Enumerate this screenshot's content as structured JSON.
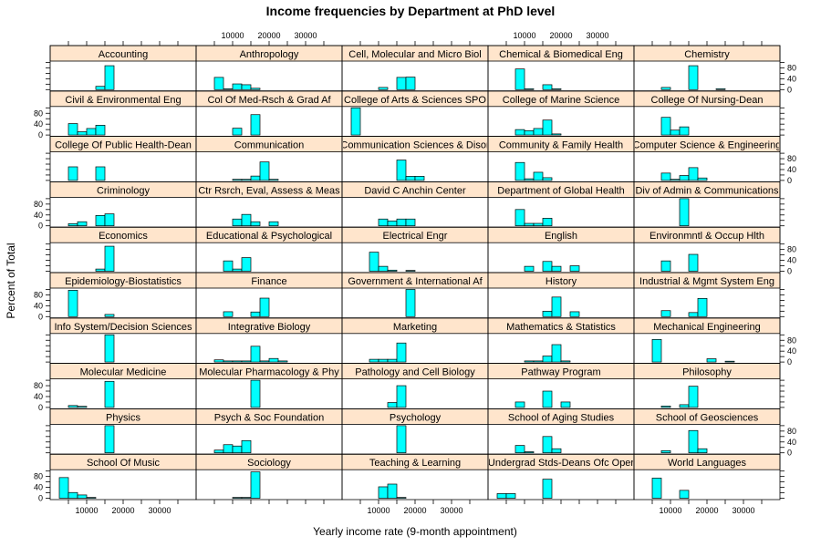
{
  "chart_data": {
    "type": "bar",
    "title": "Income frequencies by Department at PhD level",
    "xlabel": "Yearly income rate (9-month appointment)",
    "ylabel": "Percent of Total",
    "xlim": [
      0,
      40000
    ],
    "ylim": [
      0,
      105
    ],
    "x_ticks": [
      10000,
      20000,
      30000
    ],
    "y_ticks": [
      0,
      40,
      80
    ],
    "bin_edges": [
      2500,
      5000,
      7500,
      10000,
      12500,
      15000,
      17500,
      20000,
      22500,
      25000,
      27500,
      30000,
      32500,
      35000,
      37500,
      40000
    ],
    "bar_color": "#00FFFF",
    "strip_color": "#FFE5CC",
    "panels": [
      {
        "name": "School Of Music",
        "values": [
          76,
          21,
          12,
          3,
          0,
          0,
          0,
          0,
          0,
          0,
          0,
          0,
          0,
          0,
          0
        ]
      },
      {
        "name": "Sociology",
        "values": [
          0,
          0,
          0,
          3,
          3,
          97,
          0,
          0,
          0,
          0,
          0,
          0,
          0,
          0,
          0
        ]
      },
      {
        "name": "Teaching & Learning",
        "values": [
          0,
          0,
          0,
          42,
          52,
          3,
          0,
          0,
          0,
          0,
          0,
          0,
          0,
          0,
          0
        ]
      },
      {
        "name": "Undergrad Stds-Deans Ofc Oper",
        "values": [
          17,
          17,
          0,
          0,
          0,
          70,
          0,
          0,
          0,
          0,
          0,
          0,
          0,
          0,
          0
        ]
      },
      {
        "name": "World Languages",
        "values": [
          0,
          74,
          0,
          0,
          29,
          0,
          0,
          0,
          0,
          0,
          0,
          0,
          0,
          0,
          0
        ]
      },
      {
        "name": "Physics",
        "values": [
          0,
          0,
          0,
          0,
          0,
          100,
          0,
          0,
          0,
          0,
          0,
          0,
          0,
          0,
          0
        ]
      },
      {
        "name": "Psych & Soc Foundation",
        "values": [
          0,
          10,
          30,
          25,
          45,
          0,
          0,
          0,
          0,
          0,
          0,
          0,
          0,
          0,
          0
        ]
      },
      {
        "name": "Psychology",
        "values": [
          0,
          0,
          0,
          0,
          0,
          100,
          0,
          0,
          0,
          0,
          0,
          0,
          0,
          0,
          0
        ]
      },
      {
        "name": "School of Aging Studies",
        "values": [
          0,
          0,
          27,
          4,
          0,
          60,
          15,
          0,
          0,
          0,
          0,
          0,
          0,
          0,
          0
        ]
      },
      {
        "name": "School of Geosciences",
        "values": [
          0,
          0,
          8,
          0,
          0,
          82,
          15,
          0,
          0,
          0,
          0,
          0,
          0,
          0,
          0
        ]
      },
      {
        "name": "Molecular Medicine",
        "values": [
          0,
          7,
          4,
          0,
          0,
          96,
          0,
          0,
          0,
          0,
          0,
          0,
          0,
          0,
          0
        ]
      },
      {
        "name": "Molecular Pharmacology & Phy",
        "values": [
          0,
          0,
          0,
          0,
          0,
          100,
          0,
          0,
          0,
          0,
          0,
          0,
          0,
          0,
          0
        ]
      },
      {
        "name": "Pathology and Cell Biology",
        "values": [
          0,
          0,
          0,
          0,
          18,
          80,
          0,
          0,
          0,
          0,
          0,
          0,
          0,
          0,
          0
        ]
      },
      {
        "name": "Pathway Program",
        "values": [
          0,
          0,
          20,
          0,
          0,
          60,
          0,
          20,
          0,
          0,
          0,
          0,
          0,
          0,
          0
        ]
      },
      {
        "name": "Philosophy",
        "values": [
          0,
          0,
          5,
          0,
          10,
          78,
          0,
          0,
          0,
          0,
          0,
          0,
          0,
          0,
          0
        ]
      },
      {
        "name": "Info System/Decision Sciences",
        "values": [
          0,
          0,
          0,
          0,
          0,
          100,
          0,
          0,
          0,
          0,
          0,
          0,
          0,
          0,
          0
        ]
      },
      {
        "name": "Integrative Biology",
        "values": [
          0,
          8,
          4,
          4,
          4,
          58,
          4,
          13,
          4,
          0,
          0,
          0,
          0,
          0,
          0
        ]
      },
      {
        "name": "Marketing",
        "values": [
          0,
          0,
          10,
          10,
          10,
          70,
          0,
          0,
          0,
          0,
          0,
          0,
          0,
          0,
          0
        ]
      },
      {
        "name": "Mathematics & Statistics",
        "values": [
          0,
          0,
          0,
          4,
          4,
          22,
          64,
          4,
          0,
          0,
          0,
          0,
          0,
          0,
          0
        ]
      },
      {
        "name": "Mechanical Engineering",
        "values": [
          0,
          83,
          0,
          0,
          0,
          0,
          0,
          12,
          0,
          3,
          0,
          0,
          0,
          0,
          0
        ]
      },
      {
        "name": "Epidemiology-Biostatistics",
        "values": [
          0,
          97,
          0,
          0,
          0,
          8,
          0,
          0,
          0,
          0,
          0,
          0,
          0,
          0,
          0
        ]
      },
      {
        "name": "Finance",
        "values": [
          0,
          0,
          18,
          0,
          0,
          17,
          68,
          0,
          0,
          0,
          0,
          0,
          0,
          0,
          0
        ]
      },
      {
        "name": "Government & International Af",
        "values": [
          0,
          0,
          0,
          0,
          0,
          0,
          100,
          0,
          0,
          0,
          0,
          0,
          0,
          0,
          0
        ]
      },
      {
        "name": "History",
        "values": [
          0,
          0,
          0,
          0,
          0,
          20,
          72,
          0,
          18,
          0,
          0,
          0,
          0,
          0,
          0
        ]
      },
      {
        "name": "Industrial & Mgmt System Eng",
        "values": [
          0,
          0,
          22,
          0,
          0,
          15,
          67,
          0,
          0,
          0,
          0,
          0,
          0,
          0,
          0
        ]
      },
      {
        "name": "Economics",
        "values": [
          0,
          0,
          0,
          0,
          8,
          92,
          0,
          0,
          0,
          0,
          0,
          0,
          0,
          0,
          0
        ]
      },
      {
        "name": "Educational & Psychological",
        "values": [
          0,
          0,
          38,
          8,
          50,
          0,
          0,
          0,
          0,
          0,
          0,
          0,
          0,
          0,
          0
        ]
      },
      {
        "name": "Electrical Engr",
        "values": [
          0,
          0,
          70,
          18,
          4,
          0,
          3,
          0,
          0,
          0,
          0,
          0,
          0,
          0,
          0
        ]
      },
      {
        "name": "English",
        "values": [
          0,
          0,
          0,
          18,
          0,
          36,
          18,
          0,
          20,
          0,
          0,
          0,
          0,
          0,
          0
        ]
      },
      {
        "name": "Environmntl & Occup Hlth",
        "values": [
          0,
          0,
          38,
          0,
          0,
          62,
          0,
          0,
          0,
          0,
          0,
          0,
          0,
          0,
          0
        ]
      },
      {
        "name": "Criminology",
        "values": [
          0,
          8,
          15,
          0,
          38,
          44,
          0,
          0,
          0,
          0,
          0,
          0,
          0,
          0,
          0
        ]
      },
      {
        "name": "Ctr Rsrch, Eval, Assess & Meas",
        "values": [
          0,
          0,
          0,
          25,
          42,
          15,
          0,
          15,
          0,
          0,
          0,
          0,
          0,
          0,
          0
        ]
      },
      {
        "name": "David C Anchin Center",
        "values": [
          0,
          0,
          0,
          25,
          18,
          25,
          25,
          0,
          0,
          0,
          0,
          0,
          0,
          0,
          0
        ]
      },
      {
        "name": "Department of Global Health",
        "values": [
          0,
          0,
          60,
          9,
          9,
          28,
          0,
          0,
          0,
          0,
          0,
          0,
          0,
          0,
          0
        ]
      },
      {
        "name": "Div of Admin & Communications",
        "values": [
          0,
          0,
          0,
          0,
          100,
          0,
          0,
          0,
          0,
          0,
          0,
          0,
          0,
          0,
          0
        ]
      },
      {
        "name": "College Of Public Health-Dean",
        "values": [
          0,
          50,
          0,
          0,
          50,
          0,
          0,
          0,
          0,
          0,
          0,
          0,
          0,
          0,
          0
        ]
      },
      {
        "name": "Communication",
        "values": [
          0,
          0,
          0,
          4,
          4,
          16,
          68,
          4,
          0,
          0,
          0,
          0,
          0,
          0,
          0
        ]
      },
      {
        "name": "Communication Sciences & Disor",
        "values": [
          0,
          0,
          0,
          0,
          0,
          75,
          15,
          15,
          0,
          0,
          0,
          0,
          0,
          0,
          0
        ]
      },
      {
        "name": "Community & Family Health",
        "values": [
          0,
          0,
          66,
          6,
          30,
          10,
          0,
          0,
          0,
          0,
          0,
          0,
          0,
          0,
          0
        ]
      },
      {
        "name": "Computer Science & Engineering",
        "values": [
          0,
          0,
          27,
          4,
          18,
          47,
          9,
          0,
          0,
          0,
          0,
          0,
          0,
          0,
          0
        ]
      },
      {
        "name": "Civil & Environmental Eng",
        "values": [
          0,
          42,
          12,
          24,
          36,
          0,
          0,
          0,
          0,
          0,
          0,
          0,
          0,
          0,
          0
        ]
      },
      {
        "name": "Col Of Med-Rsch & Grad Af",
        "values": [
          0,
          0,
          0,
          25,
          0,
          75,
          0,
          0,
          0,
          0,
          0,
          0,
          0,
          0,
          0
        ]
      },
      {
        "name": "College of Arts & Sciences SPO",
        "values": [
          100,
          0,
          0,
          0,
          0,
          0,
          0,
          0,
          0,
          0,
          0,
          0,
          0,
          0,
          0
        ]
      },
      {
        "name": "College of Marine Science",
        "values": [
          0,
          0,
          20,
          16,
          24,
          55,
          4,
          0,
          0,
          0,
          0,
          0,
          0,
          0,
          0
        ]
      },
      {
        "name": "College Of Nursing-Dean",
        "values": [
          0,
          0,
          65,
          18,
          30,
          0,
          0,
          0,
          0,
          0,
          0,
          0,
          0,
          0,
          0
        ]
      },
      {
        "name": "Accounting",
        "values": [
          0,
          0,
          0,
          0,
          12,
          88,
          0,
          0,
          0,
          0,
          0,
          0,
          0,
          0,
          0
        ]
      },
      {
        "name": "Anthropology",
        "values": [
          0,
          45,
          3,
          21,
          18,
          5,
          0,
          0,
          0,
          0,
          0,
          0,
          0,
          0,
          0
        ]
      },
      {
        "name": "Cell, Molecular and Micro Biol",
        "values": [
          0,
          0,
          0,
          8,
          0,
          45,
          46,
          0,
          0,
          0,
          0,
          0,
          0,
          0,
          0
        ]
      },
      {
        "name": "Chemical & Biomedical Eng",
        "values": [
          0,
          0,
          76,
          3,
          0,
          18,
          3,
          0,
          0,
          0,
          0,
          0,
          0,
          0,
          0
        ]
      },
      {
        "name": "Chemistry",
        "values": [
          0,
          0,
          8,
          0,
          0,
          88,
          0,
          0,
          3,
          0,
          0,
          0,
          0,
          0,
          0
        ]
      }
    ]
  }
}
